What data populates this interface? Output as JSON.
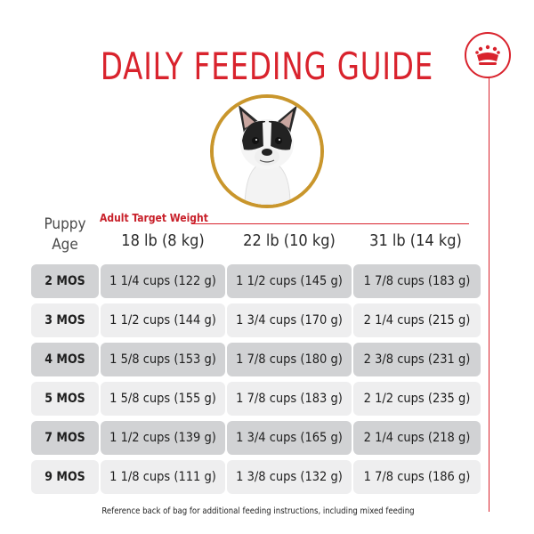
{
  "title": "DAILY FEEDING GUIDE",
  "colors": {
    "accent": "#d9232d",
    "gold": "#c9962c",
    "row_dark": "#d1d2d4",
    "row_light": "#eeeeef"
  },
  "icons": {
    "badge": "crown-icon",
    "photo": "french-bulldog-puppy-image"
  },
  "target_label": "Adult Target Weight",
  "age_header_line1": "Puppy",
  "age_header_line2": "Age",
  "weights": [
    "18 lb (8 kg)",
    "22 lb (10 kg)",
    "31 lb (14 kg)"
  ],
  "rows": [
    {
      "age": "2 MOS",
      "w1": "1 1/4 cups (122 g)",
      "w2": "1 1/2 cups (145 g)",
      "w3": "1 7/8 cups (183 g)"
    },
    {
      "age": "3 MOS",
      "w1": "1 1/2 cups (144 g)",
      "w2": "1 3/4 cups (170 g)",
      "w3": "2 1/4 cups (215 g)"
    },
    {
      "age": "4 MOS",
      "w1": "1 5/8 cups (153 g)",
      "w2": "1 7/8 cups (180 g)",
      "w3": "2 3/8 cups (231 g)"
    },
    {
      "age": "5 MOS",
      "w1": "1 5/8 cups (155 g)",
      "w2": "1 7/8 cups (183 g)",
      "w3": "2 1/2 cups (235 g)"
    },
    {
      "age": "7 MOS",
      "w1": "1 1/2 cups (139 g)",
      "w2": "1 3/4 cups (165 g)",
      "w3": "2 1/4 cups (218 g)"
    },
    {
      "age": "9 MOS",
      "w1": "1 1/8 cups (111 g)",
      "w2": "1 3/8 cups (132 g)",
      "w3": "1 7/8 cups (186 g)"
    }
  ],
  "footnote": "Reference back of bag for additional feeding instructions, including mixed feeding"
}
